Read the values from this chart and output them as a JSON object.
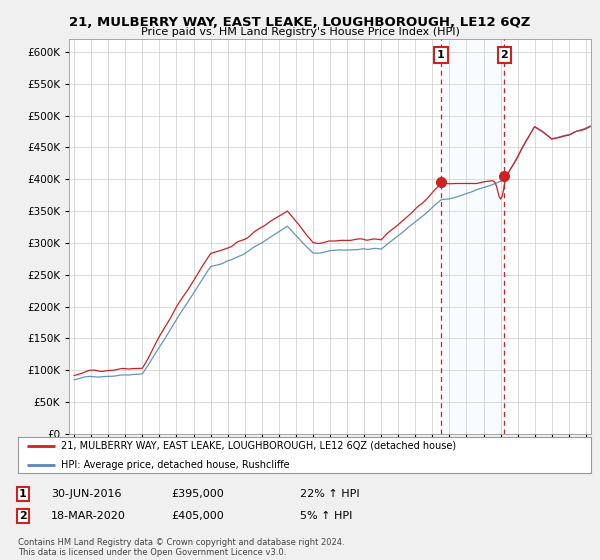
{
  "title": "21, MULBERRY WAY, EAST LEAKE, LOUGHBOROUGH, LE12 6QZ",
  "subtitle": "Price paid vs. HM Land Registry's House Price Index (HPI)",
  "legend_line1": "21, MULBERRY WAY, EAST LEAKE, LOUGHBOROUGH, LE12 6QZ (detached house)",
  "legend_line2": "HPI: Average price, detached house, Rushcliffe",
  "footnote": "Contains HM Land Registry data © Crown copyright and database right 2024.\nThis data is licensed under the Open Government Licence v3.0.",
  "transaction1_date": "30-JUN-2016",
  "transaction1_price": "£395,000",
  "transaction1_hpi": "22% ↑ HPI",
  "transaction2_date": "18-MAR-2020",
  "transaction2_price": "£405,000",
  "transaction2_hpi": "5% ↑ HPI",
  "price_line_color": "#cc2222",
  "hpi_line_color": "#5588bb",
  "shade_color": "#ddeeff",
  "background_color": "#f0f0f0",
  "plot_bg_color": "#ffffff",
  "ylim": [
    0,
    620000
  ],
  "yticks": [
    0,
    50000,
    100000,
    150000,
    200000,
    250000,
    300000,
    350000,
    400000,
    450000,
    500000,
    550000,
    600000
  ],
  "transaction1_x": 2016.5,
  "transaction1_y": 395000,
  "transaction2_x": 2020.21,
  "transaction2_y": 405000,
  "vline1_x": 2016.5,
  "vline2_x": 2020.21,
  "xmin": 1994.7,
  "xmax": 2025.3
}
